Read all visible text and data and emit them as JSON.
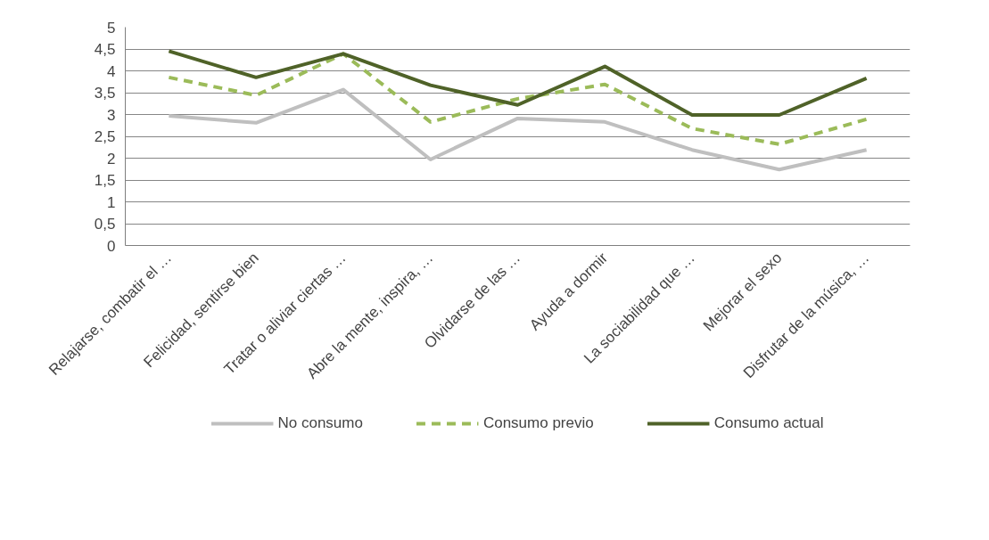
{
  "chart_data": {
    "type": "line",
    "categories": [
      "Relajarse, combatir el …",
      "Felicidad, sentirse bien",
      "Tratar o aliviar ciertas …",
      "Abre la mente, inspira, …",
      "Olvidarse de las …",
      "Ayuda a dormir",
      "La sociabilidad que …",
      "Mejorar el sexo",
      "Disfrutar de la música, …"
    ],
    "series": [
      {
        "name": "No consumo",
        "color": "#bfbfbf",
        "line_style": "solid",
        "values": [
          2.97,
          2.81,
          3.57,
          1.97,
          2.91,
          2.83,
          2.19,
          1.74,
          2.19
        ]
      },
      {
        "name": "Consumo previo",
        "color": "#9bbb59",
        "line_style": "dashed",
        "values": [
          3.85,
          3.44,
          4.39,
          2.83,
          3.36,
          3.69,
          2.68,
          2.32,
          2.89
        ]
      },
      {
        "name": "Consumo actual",
        "color": "#4f6228",
        "line_style": "solid",
        "values": [
          4.45,
          3.85,
          4.39,
          3.67,
          3.22,
          4.1,
          2.99,
          2.99,
          3.83
        ]
      }
    ],
    "ylim": [
      0,
      5
    ],
    "yticks": [
      0,
      {
        "value": 0.5,
        "label": "0,5"
      },
      1,
      {
        "value": 1.5,
        "label": "1,5"
      },
      2,
      {
        "value": 2.5,
        "label": "2,5"
      },
      3,
      {
        "value": 3.5,
        "label": "3,5"
      },
      4,
      {
        "value": 4.5,
        "label": "4,5"
      },
      5
    ],
    "grid": "y",
    "legend": "bottom",
    "marker": "none"
  }
}
